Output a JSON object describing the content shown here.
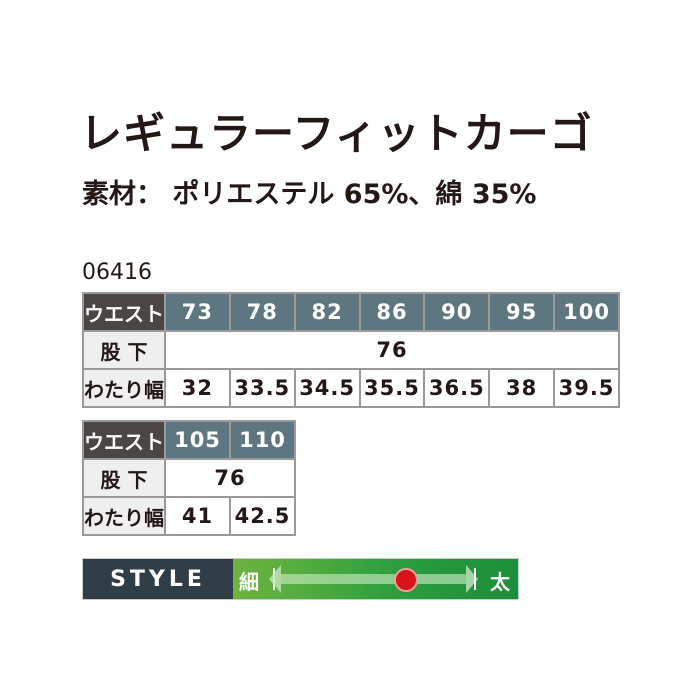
{
  "title": "レギュラーフィットカーゴ",
  "material": "素材： ポリエステル 65%、綿 35%",
  "code": "06416",
  "table1": {
    "waist_label": "ウエスト",
    "waist": [
      "73",
      "78",
      "82",
      "86",
      "90",
      "95",
      "100"
    ],
    "inseam_label": "股 下",
    "inseam": "76",
    "thigh_label": "わたり幅",
    "thigh": [
      "32",
      "33.5",
      "34.5",
      "35.5",
      "36.5",
      "38",
      "39.5"
    ]
  },
  "table2": {
    "waist_label": "ウエスト",
    "waist": [
      "105",
      "110"
    ],
    "inseam_label": "股 下",
    "inseam": "76",
    "thigh_label": "わたり幅",
    "thigh": [
      "41",
      "42.5"
    ]
  },
  "style": {
    "label": "STYLE",
    "thin": "細",
    "thick": "太",
    "position_fraction": 0.67,
    "dot_color": "#d7141a"
  },
  "colors": {
    "header": "#5e7680",
    "header_label": "#4b4544",
    "style_label_bg": "#2f3d46"
  }
}
